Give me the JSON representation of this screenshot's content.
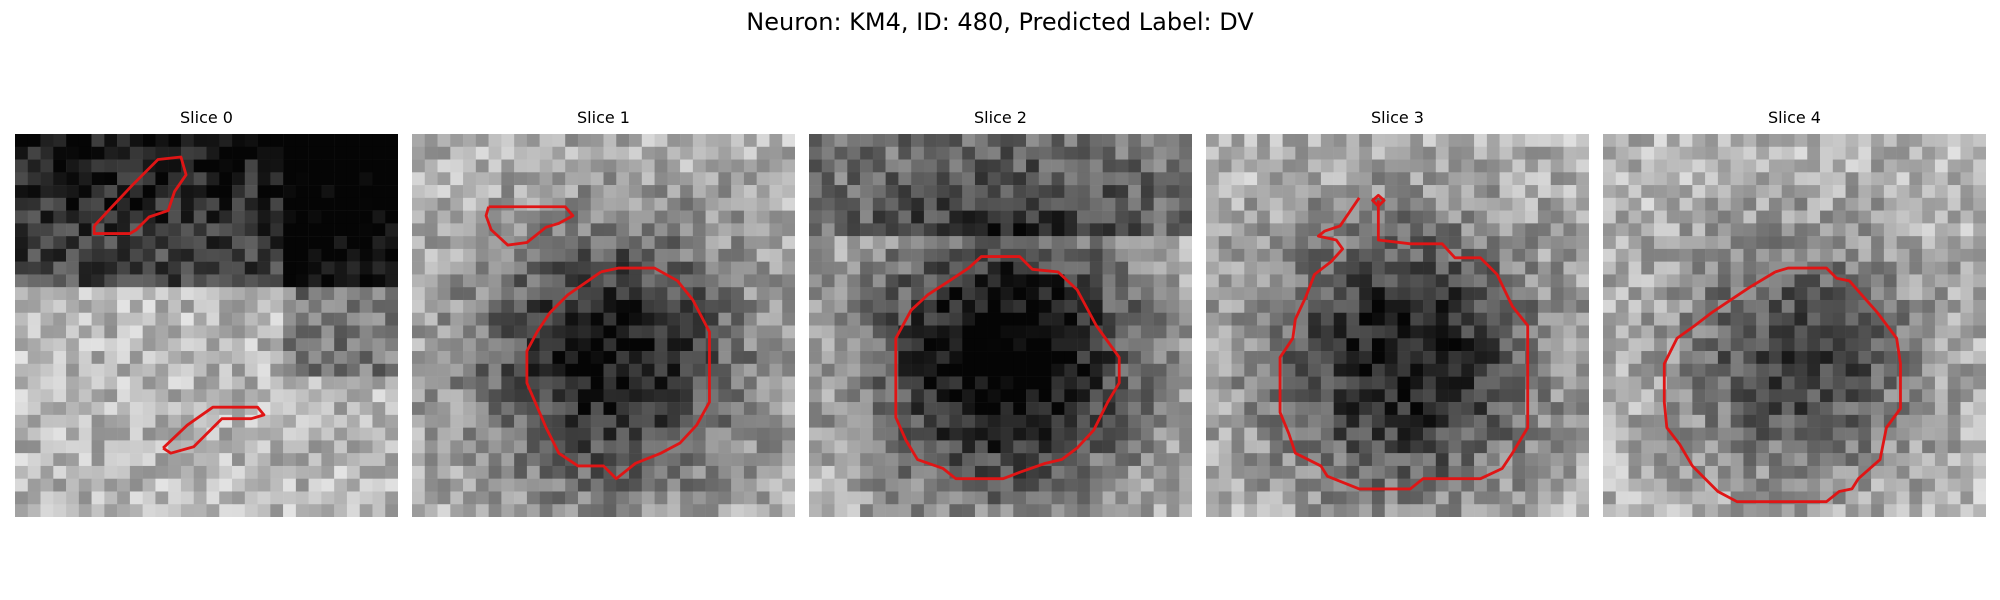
{
  "figure": {
    "title": "Neuron: KM4, ID: 480, Predicted Label: DV"
  },
  "contour_color": "#e01515",
  "slices": [
    {
      "title": "Slice 0",
      "seed": 11,
      "darkness": "top-dark"
    },
    {
      "title": "Slice 1",
      "seed": 23,
      "darkness": "center-blob"
    },
    {
      "title": "Slice 2",
      "seed": 37,
      "darkness": "center-blob-strong"
    },
    {
      "title": "Slice 3",
      "seed": 41,
      "darkness": "center-blob"
    },
    {
      "title": "Slice 4",
      "seed": 53,
      "darkness": "center-blob-light"
    }
  ]
}
